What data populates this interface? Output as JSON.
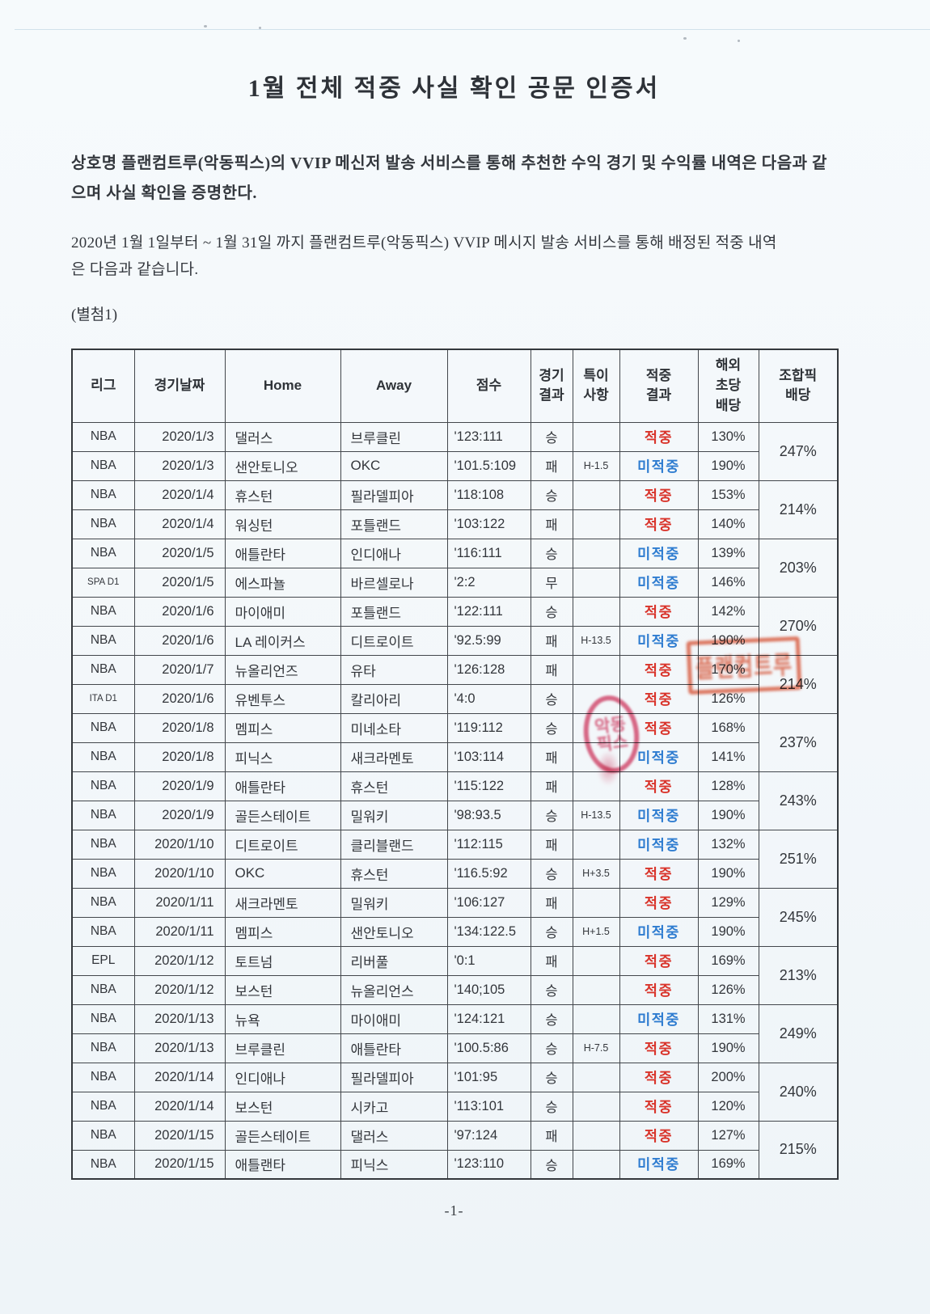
{
  "document": {
    "title": "1월 전체 적중 사실 확인 공문 인증서",
    "intro": "상호명 플랜컴트루(악동픽스)의 VVIP 메신저 발송 서비스를 통해 추천한 수익 경기 및 수익률 내역은 다음과 같\n으며 사실 확인을 증명한다.",
    "period_statement": "2020년 1월 1일부터 ~ 1월 31일 까지 플랜컴트루(악동픽스) VVIP 메시지 발송 서비스를 통해 배정된 적중 내역\n은 다음과 같습니다.",
    "attachment_label": "(별첨1)",
    "page_number": "-1-"
  },
  "table": {
    "headers": [
      "리그",
      "경기날짜",
      "Home",
      "Away",
      "점수",
      "경기\n결과",
      "특이\n사항",
      "적중\n결과",
      "해외\n초당\n배당",
      "조합픽\n배당"
    ],
    "hit_label": "적중",
    "miss_label": "미적중",
    "rows": [
      {
        "league": "NBA",
        "date": "2020/1/3",
        "home": "댈러스",
        "away": "브루클린",
        "score": "'123:111",
        "result": "승",
        "note": "",
        "hit": "적중",
        "odds": "130%"
      },
      {
        "league": "NBA",
        "date": "2020/1/3",
        "home": "샌안토니오",
        "away": "OKC",
        "score": "'101.5:109",
        "result": "패",
        "note": "H-1.5",
        "hit": "미적중",
        "odds": "190%"
      },
      {
        "league": "NBA",
        "date": "2020/1/4",
        "home": "휴스턴",
        "away": "필라델피아",
        "score": "'118:108",
        "result": "승",
        "note": "",
        "hit": "적중",
        "odds": "153%"
      },
      {
        "league": "NBA",
        "date": "2020/1/4",
        "home": "워싱턴",
        "away": "포틀랜드",
        "score": "'103:122",
        "result": "패",
        "note": "",
        "hit": "적중",
        "odds": "140%"
      },
      {
        "league": "NBA",
        "date": "2020/1/5",
        "home": "애틀란타",
        "away": "인디애나",
        "score": "'116:111",
        "result": "승",
        "note": "",
        "hit": "미적중",
        "odds": "139%"
      },
      {
        "league": "SPA D1",
        "date": "2020/1/5",
        "home": "에스파뇰",
        "away": "바르셀로나",
        "score": "'2:2",
        "result": "무",
        "note": "",
        "hit": "미적중",
        "odds": "146%"
      },
      {
        "league": "NBA",
        "date": "2020/1/6",
        "home": "마이애미",
        "away": "포틀랜드",
        "score": "'122:111",
        "result": "승",
        "note": "",
        "hit": "적중",
        "odds": "142%"
      },
      {
        "league": "NBA",
        "date": "2020/1/6",
        "home": "LA 레이커스",
        "away": "디트로이트",
        "score": "'92.5:99",
        "result": "패",
        "note": "H-13.5",
        "hit": "미적중",
        "odds": "190%"
      },
      {
        "league": "NBA",
        "date": "2020/1/7",
        "home": "뉴올리언즈",
        "away": "유타",
        "score": "'126:128",
        "result": "패",
        "note": "",
        "hit": "적중",
        "odds": "170%"
      },
      {
        "league": "ITA D1",
        "date": "2020/1/6",
        "home": "유벤투스",
        "away": "칼리아리",
        "score": "'4:0",
        "result": "승",
        "note": "",
        "hit": "적중",
        "odds": "126%"
      },
      {
        "league": "NBA",
        "date": "2020/1/8",
        "home": "멤피스",
        "away": "미네소타",
        "score": "'119:112",
        "result": "승",
        "note": "",
        "hit": "적중",
        "odds": "168%"
      },
      {
        "league": "NBA",
        "date": "2020/1/8",
        "home": "피닉스",
        "away": "새크라멘토",
        "score": "'103:114",
        "result": "패",
        "note": "",
        "hit": "미적중",
        "odds": "141%"
      },
      {
        "league": "NBA",
        "date": "2020/1/9",
        "home": "애틀란타",
        "away": "휴스턴",
        "score": "'115:122",
        "result": "패",
        "note": "",
        "hit": "적중",
        "odds": "128%"
      },
      {
        "league": "NBA",
        "date": "2020/1/9",
        "home": "골든스테이트",
        "away": "밀워키",
        "score": "'98:93.5",
        "result": "승",
        "note": "H-13.5",
        "hit": "미적중",
        "odds": "190%"
      },
      {
        "league": "NBA",
        "date": "2020/1/10",
        "home": "디트로이트",
        "away": "클리블랜드",
        "score": "'112:115",
        "result": "패",
        "note": "",
        "hit": "미적중",
        "odds": "132%"
      },
      {
        "league": "NBA",
        "date": "2020/1/10",
        "home": "OKC",
        "away": "휴스턴",
        "score": "'116.5:92",
        "result": "승",
        "note": "H+3.5",
        "hit": "적중",
        "odds": "190%"
      },
      {
        "league": "NBA",
        "date": "2020/1/11",
        "home": "새크라멘토",
        "away": "밀워키",
        "score": "'106:127",
        "result": "패",
        "note": "",
        "hit": "적중",
        "odds": "129%"
      },
      {
        "league": "NBA",
        "date": "2020/1/11",
        "home": "멤피스",
        "away": "샌안토니오",
        "score": "'134:122.5",
        "result": "승",
        "note": "H+1.5",
        "hit": "미적중",
        "odds": "190%"
      },
      {
        "league": "EPL",
        "date": "2020/1/12",
        "home": "토트넘",
        "away": "리버풀",
        "score": "'0:1",
        "result": "패",
        "note": "",
        "hit": "적중",
        "odds": "169%"
      },
      {
        "league": "NBA",
        "date": "2020/1/12",
        "home": "보스턴",
        "away": "뉴올리언스",
        "score": "'140;105",
        "result": "승",
        "note": "",
        "hit": "적중",
        "odds": "126%"
      },
      {
        "league": "NBA",
        "date": "2020/1/13",
        "home": "뉴욕",
        "away": "마이애미",
        "score": "'124:121",
        "result": "승",
        "note": "",
        "hit": "미적중",
        "odds": "131%"
      },
      {
        "league": "NBA",
        "date": "2020/1/13",
        "home": "브루클린",
        "away": "애틀란타",
        "score": "'100.5:86",
        "result": "승",
        "note": "H-7.5",
        "hit": "적중",
        "odds": "190%"
      },
      {
        "league": "NBA",
        "date": "2020/1/14",
        "home": "인디애나",
        "away": "필라델피아",
        "score": "'101:95",
        "result": "승",
        "note": "",
        "hit": "적중",
        "odds": "200%"
      },
      {
        "league": "NBA",
        "date": "2020/1/14",
        "home": "보스턴",
        "away": "시카고",
        "score": "'113:101",
        "result": "승",
        "note": "",
        "hit": "적중",
        "odds": "120%"
      },
      {
        "league": "NBA",
        "date": "2020/1/15",
        "home": "골든스테이트",
        "away": "댈러스",
        "score": "'97:124",
        "result": "패",
        "note": "",
        "hit": "적중",
        "odds": "127%"
      },
      {
        "league": "NBA",
        "date": "2020/1/15",
        "home": "애틀랜타",
        "away": "피닉스",
        "score": "'123:110",
        "result": "승",
        "note": "",
        "hit": "미적중",
        "odds": "169%"
      }
    ],
    "combo_odds": [
      "247%",
      "214%",
      "203%",
      "270%",
      "214%",
      "237%",
      "243%",
      "251%",
      "245%",
      "213%",
      "249%",
      "240%",
      "215%"
    ]
  },
  "colors": {
    "hit_red": "#d9342b",
    "miss_blue": "#2e7cd0",
    "stamp_orange": "#e05030",
    "stamp_pink": "#dc4f72",
    "paper": "#f4f8fb",
    "grid_line": "#43474c",
    "text": "#33363b"
  },
  "stamps": {
    "rect_seal": {
      "legible": false,
      "texture": "플랜컴트루"
    },
    "oval_seal": {
      "legible": false,
      "texture": "악동픽스"
    }
  }
}
